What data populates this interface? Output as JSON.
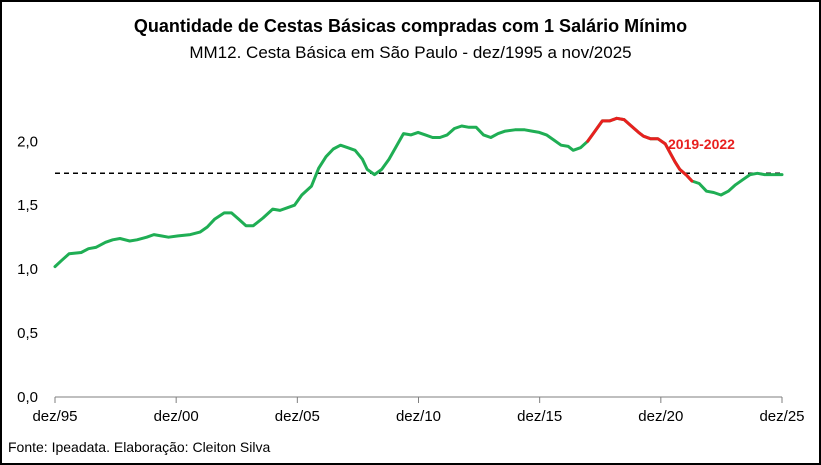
{
  "chart_data": {
    "type": "line",
    "title": "Quantidade de Cestas Básicas compradas com 1 Salário Mínimo",
    "subtitle": "MM12. Cesta Básica em São Paulo - dez/1995 a nov/2025",
    "xlabel": "",
    "ylabel": "",
    "x_start": "1995-12",
    "x_end": "2025-11",
    "x_ticks": [
      {
        "label": "dez/95",
        "t": 1995.917
      },
      {
        "label": "dez/00",
        "t": 2000.917
      },
      {
        "label": "dez/05",
        "t": 2005.917
      },
      {
        "label": "dez/10",
        "t": 2010.917
      },
      {
        "label": "dez/15",
        "t": 2015.917
      },
      {
        "label": "dez/20",
        "t": 2020.917
      },
      {
        "label": "dez/25",
        "t": 2025.917
      }
    ],
    "y_ticks": [
      "0,0",
      "0,5",
      "1,0",
      "1,5",
      "2,0"
    ],
    "ylim": [
      0,
      2.5
    ],
    "grid": false,
    "reference_line": {
      "value": 1.75,
      "style": "dashed",
      "color": "#000000"
    },
    "highlight": {
      "label": "2019-2022",
      "from": 2018.0,
      "to": 2022.2,
      "color": "#e8201f"
    },
    "colors": {
      "line": "#1fae54",
      "highlight": "#e8201f"
    },
    "series": [
      {
        "points": [
          [
            1995.917,
            1.02
          ],
          [
            1996.2,
            1.07
          ],
          [
            1996.5,
            1.12
          ],
          [
            1997.0,
            1.13
          ],
          [
            1997.3,
            1.16
          ],
          [
            1997.6,
            1.17
          ],
          [
            1998.0,
            1.21
          ],
          [
            1998.3,
            1.23
          ],
          [
            1998.6,
            1.24
          ],
          [
            1999.0,
            1.22
          ],
          [
            1999.3,
            1.23
          ],
          [
            1999.7,
            1.25
          ],
          [
            2000.0,
            1.27
          ],
          [
            2000.3,
            1.26
          ],
          [
            2000.6,
            1.25
          ],
          [
            2001.0,
            1.26
          ],
          [
            2001.5,
            1.27
          ],
          [
            2001.9,
            1.29
          ],
          [
            2002.2,
            1.33
          ],
          [
            2002.5,
            1.39
          ],
          [
            2002.9,
            1.44
          ],
          [
            2003.2,
            1.44
          ],
          [
            2003.5,
            1.39
          ],
          [
            2003.8,
            1.34
          ],
          [
            2004.1,
            1.34
          ],
          [
            2004.5,
            1.4
          ],
          [
            2004.9,
            1.47
          ],
          [
            2005.2,
            1.46
          ],
          [
            2005.5,
            1.48
          ],
          [
            2005.8,
            1.5
          ],
          [
            2006.1,
            1.58
          ],
          [
            2006.5,
            1.65
          ],
          [
            2006.8,
            1.79
          ],
          [
            2007.1,
            1.88
          ],
          [
            2007.4,
            1.94
          ],
          [
            2007.7,
            1.97
          ],
          [
            2008.0,
            1.95
          ],
          [
            2008.3,
            1.93
          ],
          [
            2008.6,
            1.86
          ],
          [
            2008.8,
            1.78
          ],
          [
            2009.1,
            1.74
          ],
          [
            2009.4,
            1.78
          ],
          [
            2009.7,
            1.86
          ],
          [
            2010.0,
            1.96
          ],
          [
            2010.3,
            2.06
          ],
          [
            2010.6,
            2.05
          ],
          [
            2010.9,
            2.07
          ],
          [
            2011.2,
            2.05
          ],
          [
            2011.5,
            2.03
          ],
          [
            2011.8,
            2.03
          ],
          [
            2012.1,
            2.05
          ],
          [
            2012.4,
            2.1
          ],
          [
            2012.7,
            2.12
          ],
          [
            2013.0,
            2.11
          ],
          [
            2013.3,
            2.11
          ],
          [
            2013.6,
            2.05
          ],
          [
            2013.9,
            2.03
          ],
          [
            2014.2,
            2.06
          ],
          [
            2014.5,
            2.08
          ],
          [
            2014.9,
            2.09
          ],
          [
            2015.3,
            2.09
          ],
          [
            2015.6,
            2.08
          ],
          [
            2015.9,
            2.07
          ],
          [
            2016.2,
            2.05
          ],
          [
            2016.5,
            2.01
          ],
          [
            2016.8,
            1.97
          ],
          [
            2017.1,
            1.96
          ],
          [
            2017.3,
            1.93
          ],
          [
            2017.6,
            1.95
          ],
          [
            2017.9,
            2.0
          ],
          [
            2018.2,
            2.08
          ],
          [
            2018.5,
            2.16
          ],
          [
            2018.8,
            2.16
          ],
          [
            2019.1,
            2.18
          ],
          [
            2019.4,
            2.17
          ],
          [
            2019.7,
            2.12
          ],
          [
            2020.0,
            2.07
          ],
          [
            2020.2,
            2.04
          ],
          [
            2020.5,
            2.02
          ],
          [
            2020.8,
            2.02
          ],
          [
            2021.1,
            1.98
          ],
          [
            2021.3,
            1.91
          ],
          [
            2021.5,
            1.84
          ],
          [
            2021.7,
            1.78
          ],
          [
            2022.0,
            1.73
          ],
          [
            2022.2,
            1.69
          ],
          [
            2022.5,
            1.67
          ],
          [
            2022.8,
            1.61
          ],
          [
            2023.1,
            1.6
          ],
          [
            2023.4,
            1.58
          ],
          [
            2023.7,
            1.61
          ],
          [
            2024.0,
            1.66
          ],
          [
            2024.3,
            1.7
          ],
          [
            2024.6,
            1.74
          ],
          [
            2024.9,
            1.75
          ],
          [
            2025.2,
            1.74
          ],
          [
            2025.5,
            1.74
          ],
          [
            2025.917,
            1.74
          ]
        ]
      }
    ]
  },
  "source_note": "Fonte: Ipeadata. Elaboração: Cleiton Silva"
}
